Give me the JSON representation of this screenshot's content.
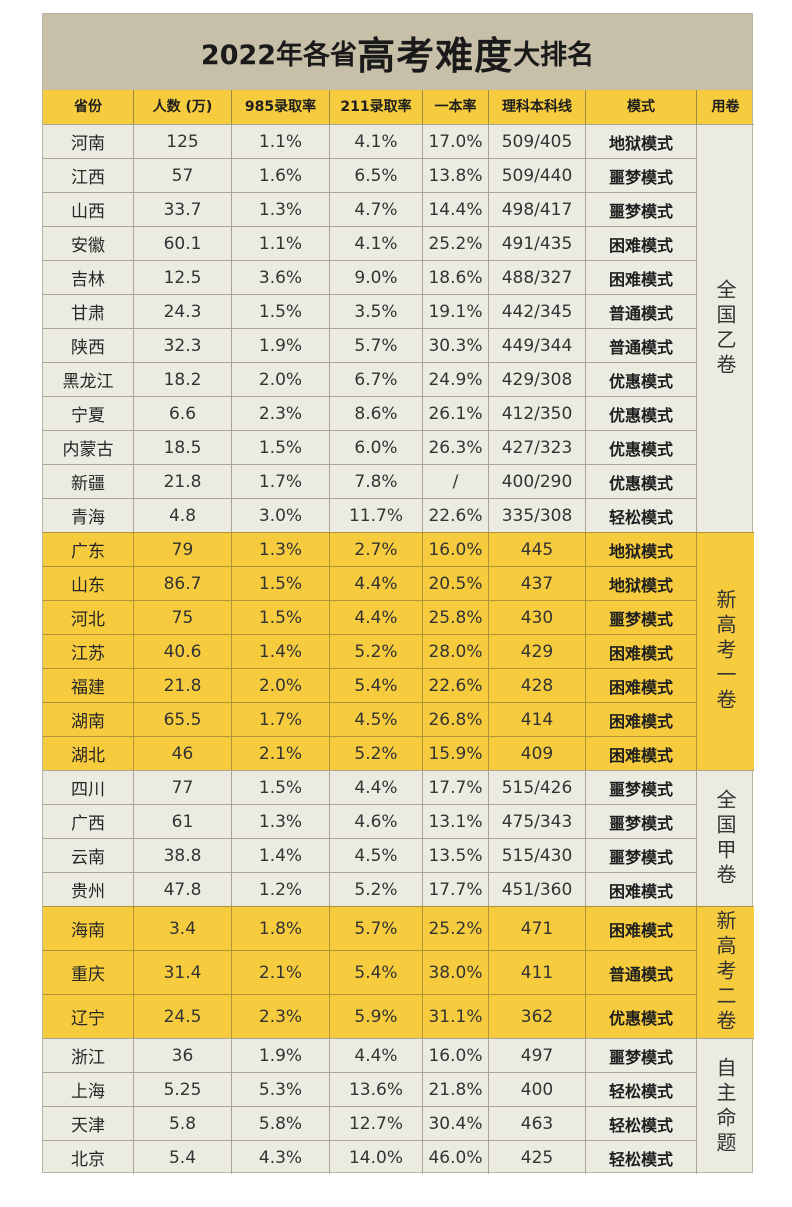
{
  "title": {
    "part1": "2022年各省",
    "part2": "高考难度",
    "part3": "大排名"
  },
  "headers": [
    "省份",
    "人数 (万)",
    "985录取率",
    "211录取率",
    "一本率",
    "理科本科线",
    "模式",
    "用卷"
  ],
  "rows": [
    [
      "河南",
      "125",
      "1.1%",
      "4.1%",
      "17.0%",
      "509/405",
      "地狱模式"
    ],
    [
      "江西",
      "57",
      "1.6%",
      "6.5%",
      "13.8%",
      "509/440",
      "噩梦模式"
    ],
    [
      "山西",
      "33.7",
      "1.3%",
      "4.7%",
      "14.4%",
      "498/417",
      "噩梦模式"
    ],
    [
      "安徽",
      "60.1",
      "1.1%",
      "4.1%",
      "25.2%",
      "491/435",
      "困难模式"
    ],
    [
      "吉林",
      "12.5",
      "3.6%",
      "9.0%",
      "18.6%",
      "488/327",
      "困难模式"
    ],
    [
      "甘肃",
      "24.3",
      "1.5%",
      "3.5%",
      "19.1%",
      "442/345",
      "普通模式"
    ],
    [
      "陕西",
      "32.3",
      "1.9%",
      "5.7%",
      "30.3%",
      "449/344",
      "普通模式"
    ],
    [
      "黑龙江",
      "18.2",
      "2.0%",
      "6.7%",
      "24.9%",
      "429/308",
      "优惠模式"
    ],
    [
      "宁夏",
      "6.6",
      "2.3%",
      "8.6%",
      "26.1%",
      "412/350",
      "优惠模式"
    ],
    [
      "内蒙古",
      "18.5",
      "1.5%",
      "6.0%",
      "26.3%",
      "427/323",
      "优惠模式"
    ],
    [
      "新疆",
      "21.8",
      "1.7%",
      "7.8%",
      "/",
      "400/290",
      "优惠模式"
    ],
    [
      "青海",
      "4.8",
      "3.0%",
      "11.7%",
      "22.6%",
      "335/308",
      "轻松模式"
    ],
    [
      "广东",
      "79",
      "1.3%",
      "2.7%",
      "16.0%",
      "445",
      "地狱模式"
    ],
    [
      "山东",
      "86.7",
      "1.5%",
      "4.4%",
      "20.5%",
      "437",
      "地狱模式"
    ],
    [
      "河北",
      "75",
      "1.5%",
      "4.4%",
      "25.8%",
      "430",
      "噩梦模式"
    ],
    [
      "江苏",
      "40.6",
      "1.4%",
      "5.2%",
      "28.0%",
      "429",
      "困难模式"
    ],
    [
      "福建",
      "21.8",
      "2.0%",
      "5.4%",
      "22.6%",
      "428",
      "困难模式"
    ],
    [
      "湖南",
      "65.5",
      "1.7%",
      "4.5%",
      "26.8%",
      "414",
      "困难模式"
    ],
    [
      "湖北",
      "46",
      "2.1%",
      "5.2%",
      "15.9%",
      "409",
      "困难模式"
    ],
    [
      "四川",
      "77",
      "1.5%",
      "4.4%",
      "17.7%",
      "515/426",
      "噩梦模式"
    ],
    [
      "广西",
      "61",
      "1.3%",
      "4.6%",
      "13.1%",
      "475/343",
      "噩梦模式"
    ],
    [
      "云南",
      "38.8",
      "1.4%",
      "4.5%",
      "13.5%",
      "515/430",
      "噩梦模式"
    ],
    [
      "贵州",
      "47.8",
      "1.2%",
      "5.2%",
      "17.7%",
      "451/360",
      "困难模式"
    ],
    [
      "海南",
      "3.4",
      "1.8%",
      "5.7%",
      "25.2%",
      "471",
      "困难模式"
    ],
    [
      "重庆",
      "31.4",
      "2.1%",
      "5.4%",
      "38.0%",
      "411",
      "普通模式"
    ],
    [
      "辽宁",
      "24.5",
      "2.3%",
      "5.9%",
      "31.1%",
      "362",
      "优惠模式"
    ],
    [
      "浙江",
      "36",
      "1.9%",
      "4.4%",
      "16.0%",
      "497",
      "噩梦模式"
    ],
    [
      "上海",
      "5.25",
      "5.3%",
      "13.6%",
      "21.8%",
      "400",
      "轻松模式"
    ],
    [
      "天津",
      "5.8",
      "5.8%",
      "12.7%",
      "30.4%",
      "463",
      "轻松模式"
    ],
    [
      "北京",
      "5.4",
      "4.3%",
      "14.0%",
      "46.0%",
      "425",
      "轻松模式"
    ]
  ],
  "groups": [
    {
      "label": "全国乙卷",
      "count": 12,
      "highlight": false
    },
    {
      "label": "新高考一卷",
      "count": 7,
      "highlight": true
    },
    {
      "label": "全国甲卷",
      "count": 4,
      "highlight": false
    },
    {
      "label": "新高考二卷",
      "count": 3,
      "highlight": true
    },
    {
      "label": "自主命题",
      "count": 4,
      "highlight": false
    }
  ],
  "colors": {
    "highlight": "#f6cc3e",
    "base": "#ecebe2",
    "title_bg": "#c8bfa8"
  }
}
